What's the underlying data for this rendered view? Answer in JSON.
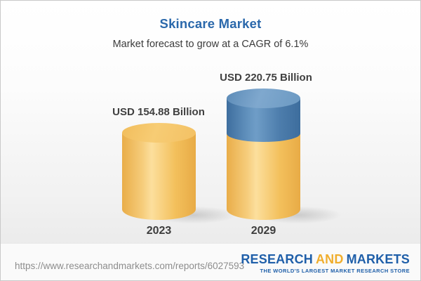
{
  "header": {
    "title": "Skincare Market",
    "subtitle": "Market forecast to grow at a CAGR of 6.1%"
  },
  "chart_data": {
    "type": "bar",
    "variant": "3d-cylinder",
    "title": "Skincare Market",
    "subtitle": "Market forecast to grow at a CAGR of 6.1%",
    "categories": [
      "2023",
      "2029"
    ],
    "values": [
      154.88,
      220.75
    ],
    "value_labels": [
      "USD 154.88 Billion",
      "USD 220.75 Billion"
    ],
    "unit": "USD Billion",
    "cagr_percent": 6.1,
    "segments": {
      "base_color": "#F2BC5E",
      "growth_color": "#4E7FAF",
      "growth_value": 65.87,
      "note": "blue cap on 2029 bar depicts growth above 2023 value"
    },
    "legend": "none",
    "axes": {
      "visible": false
    },
    "grid": false
  },
  "colors": {
    "title_blue": "#2A68AB",
    "bar_yellow": "#F2BC5E",
    "bar_blue": "#4E7FAF",
    "label_gray": "#404040",
    "logo_blue": "#1F5FA9",
    "logo_gold": "#F0AE2E"
  },
  "footer": {
    "source_url": "https://www.researchandmarkets.com/reports/6027593",
    "logo": {
      "part1": "RESEARCH",
      "part2": "AND",
      "part3": "MARKETS",
      "tagline": "THE WORLD'S LARGEST MARKET RESEARCH STORE"
    }
  }
}
